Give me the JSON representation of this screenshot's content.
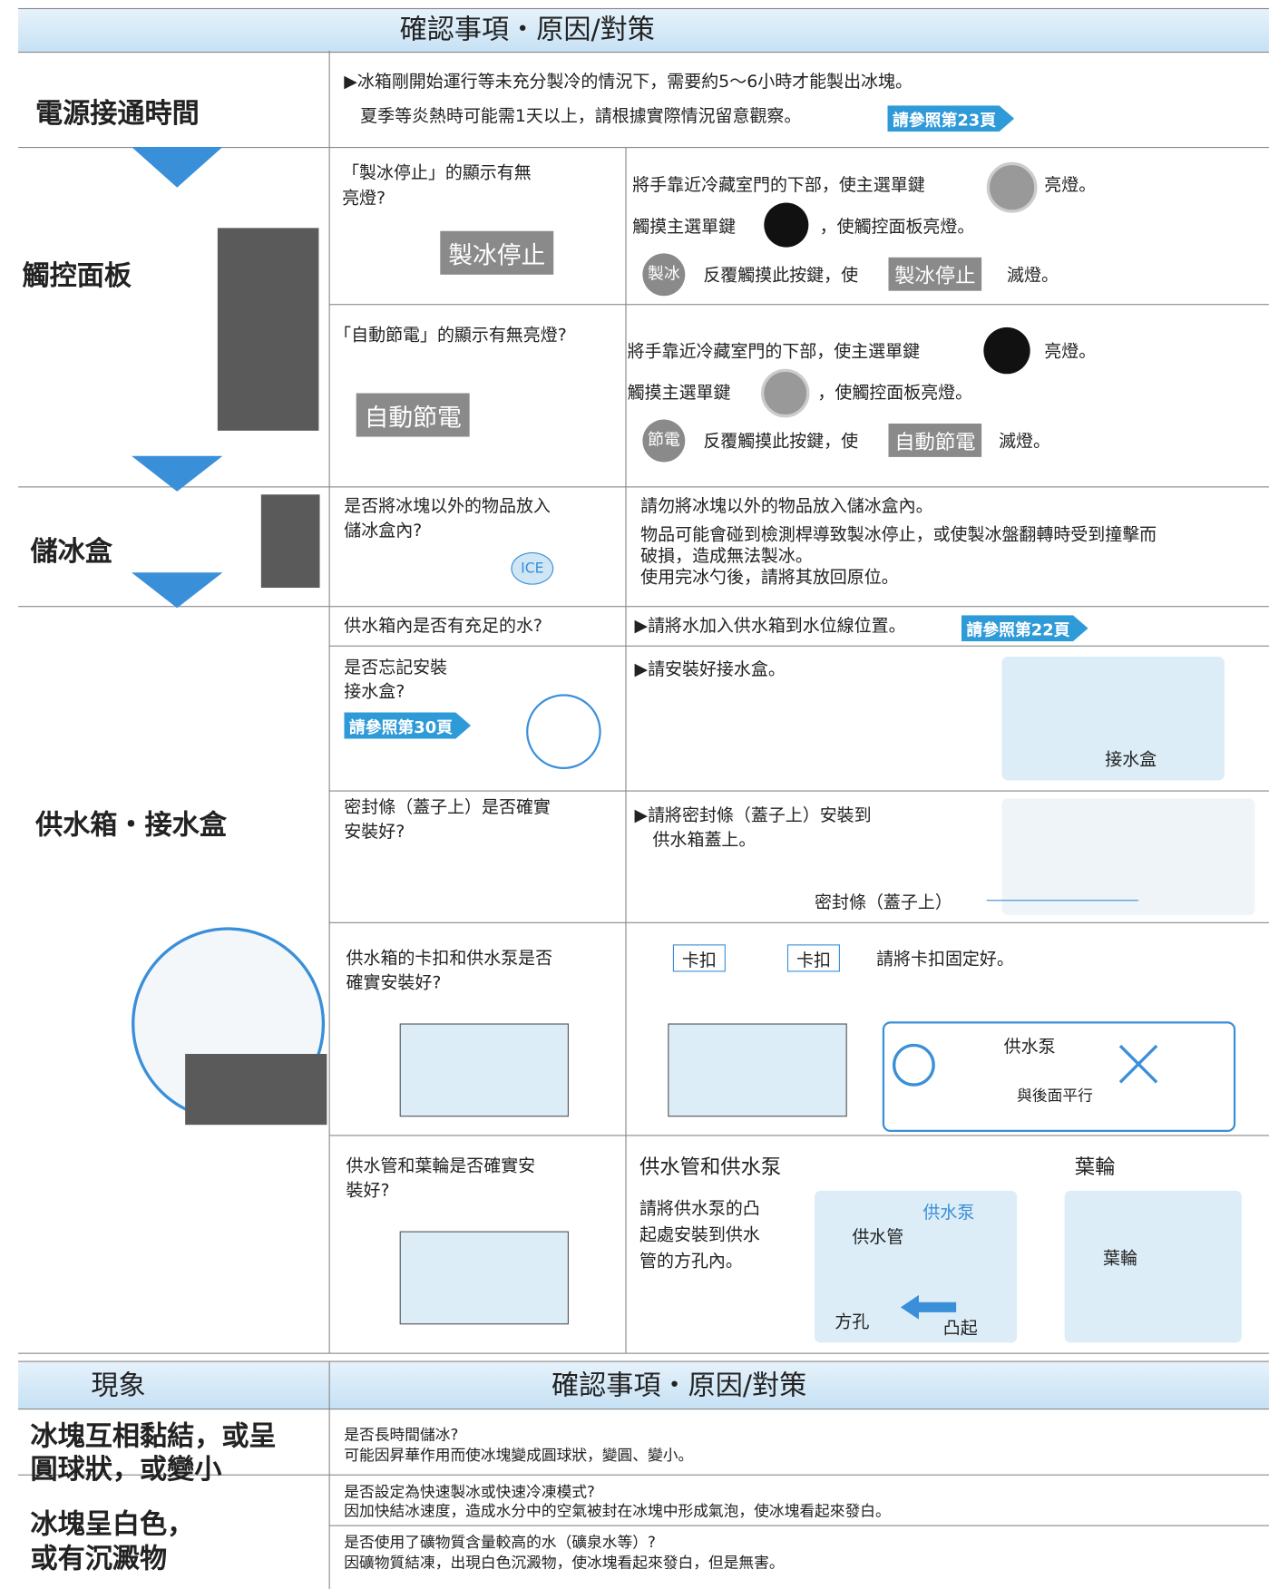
{
  "header": {
    "title": "確認事項・原因/對策"
  },
  "power": {
    "label": "電源接通時間",
    "lines": [
      "▶冰箱剛開始運行等未充分製冷的情況下，需要約5～6小時才能製出冰塊。",
      "夏季等炎熱時可能需1天以上，請根據實際情況留意觀察。"
    ],
    "ref": "請參照第23頁"
  },
  "touch": {
    "label": "觸控面板",
    "rows": [
      {
        "check": [
          "「製冰停止」的顯示有無",
          "亮燈?"
        ],
        "indicator": "製冰停止",
        "steps": [
          [
            "將手靠近冷藏室門的下部，使主選單鍵",
            "亮燈。"
          ],
          [
            "觸摸主選單鍵",
            "，使觸控面板亮燈。"
          ],
          [
            "製冰",
            "反覆觸摸此按鍵，使",
            "製冰停止",
            "滅燈。"
          ]
        ]
      },
      {
        "check": [
          "「自動節電」的顯示有無亮燈?"
        ],
        "indicator": "自動節電",
        "steps": [
          [
            "將手靠近冷藏室門的下部，使主選單鍵",
            "亮燈。"
          ],
          [
            "觸摸主選單鍵",
            "，使觸控面板亮燈。"
          ],
          [
            "節電",
            "反覆觸摸此按鍵，使",
            "自動節電",
            "滅燈。"
          ]
        ]
      }
    ]
  },
  "ice": {
    "label": "儲冰盒",
    "check": [
      "是否將冰塊以外的物品放入",
      "儲冰盒內?"
    ],
    "icon": "ICE",
    "solution": [
      "請勿將冰塊以外的物品放入儲冰盒內。",
      "物品可能會碰到檢測桿導致製冰停止，或使製冰盤翻轉時受到撞擊而",
      "破損，造成無法製冰。",
      "使用完冰勺後，請將其放回原位。"
    ]
  },
  "water": {
    "label": "供水箱・接水盒",
    "rows": [
      {
        "check": [
          "供水箱內是否有充足的水?"
        ],
        "solution": [
          "▶請將水加入供水箱到水位線位置。"
        ],
        "ref": "請參照第22頁"
      },
      {
        "check": [
          "是否忘記安裝",
          "接水盒?"
        ],
        "ref": "請參照第30頁",
        "solution": [
          "▶請安裝好接水盒。"
        ],
        "figure_label": "接水盒"
      },
      {
        "check": [
          "密封條（蓋子上）是否確實",
          "安裝好?"
        ],
        "solution": [
          "▶請將密封條（蓋子上）安裝到",
          "供水箱蓋上。"
        ],
        "figure_label": "密封條（蓋子上）"
      },
      {
        "check": [
          "供水箱的卡扣和供水泵是否",
          "確實安裝好?"
        ],
        "solution": [
          "請將卡扣固定好。"
        ],
        "labels": [
          "卡扣",
          "卡扣",
          "供水泵",
          "與後面平行"
        ]
      },
      {
        "check": [
          "供水管和葉輪是否確實安",
          "裝好?"
        ],
        "heading_left": "供水管和供水泵",
        "heading_right": "葉輪",
        "solution": [
          "請將供水泵的凸",
          "起處安裝到供水",
          "管的方孔內。"
        ],
        "labels": [
          "供水泵",
          "供水管",
          "方孔",
          "凸起",
          "葉輪"
        ]
      }
    ]
  },
  "table": {
    "header": [
      "現象",
      "確認事項・原因/對策"
    ],
    "rows": [
      {
        "symptom": [
          "冰塊互相黏結，或呈",
          "圓球狀，或變小"
        ],
        "items": [
          [
            "是否長時間儲冰?",
            "可能因昇華作用而使冰塊變成圓球狀，變圓、變小。"
          ]
        ]
      },
      {
        "symptom": [
          "冰塊呈白色，",
          "或有沉澱物"
        ],
        "items": [
          [
            "是否設定為快速製冰或快速冷凍模式?",
            "因加快結冰速度，造成水分中的空氣被封在冰塊中形成氣泡，使冰塊看起來發白。"
          ],
          [
            "是否使用了礦物質含量較高的水（礦泉水等）?",
            "因礦物質結凍，出現白色沉澱物，使冰塊看起來發白，但是無害。"
          ]
        ]
      }
    ]
  }
}
